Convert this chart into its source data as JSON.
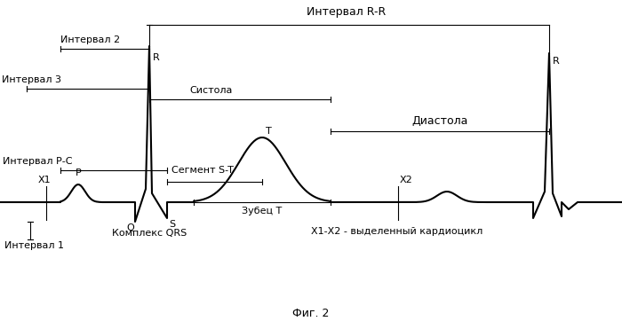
{
  "fig_width": 7.0,
  "fig_height": 3.71,
  "dpi": 100,
  "bg_color": "#ffffff",
  "line_color": "#000000",
  "title_fig": "Фиг. 2",
  "labels": {
    "interval_RR": "Интервал R-R",
    "interval_2": "Интервал 2",
    "interval_3": "Интервал 3",
    "interval_PC": "Интервал Р-С",
    "interval_1": "Интервал 1",
    "systola": "Систола",
    "diastola": "Диастола",
    "segment_ST": "Сегмент S-T",
    "zubec_T": "Зубец Т",
    "complex_QRS": "Комплекс QRS",
    "x1x2": "Х1-Х2 - выделенный кардиоцикл",
    "R1": "R",
    "R2": "R",
    "P": "P",
    "Q": "Q",
    "S": "S",
    "T": "Т",
    "X1": "Х1",
    "X2": "Х2"
  },
  "fontsize": 8,
  "fontsize_title": 9
}
